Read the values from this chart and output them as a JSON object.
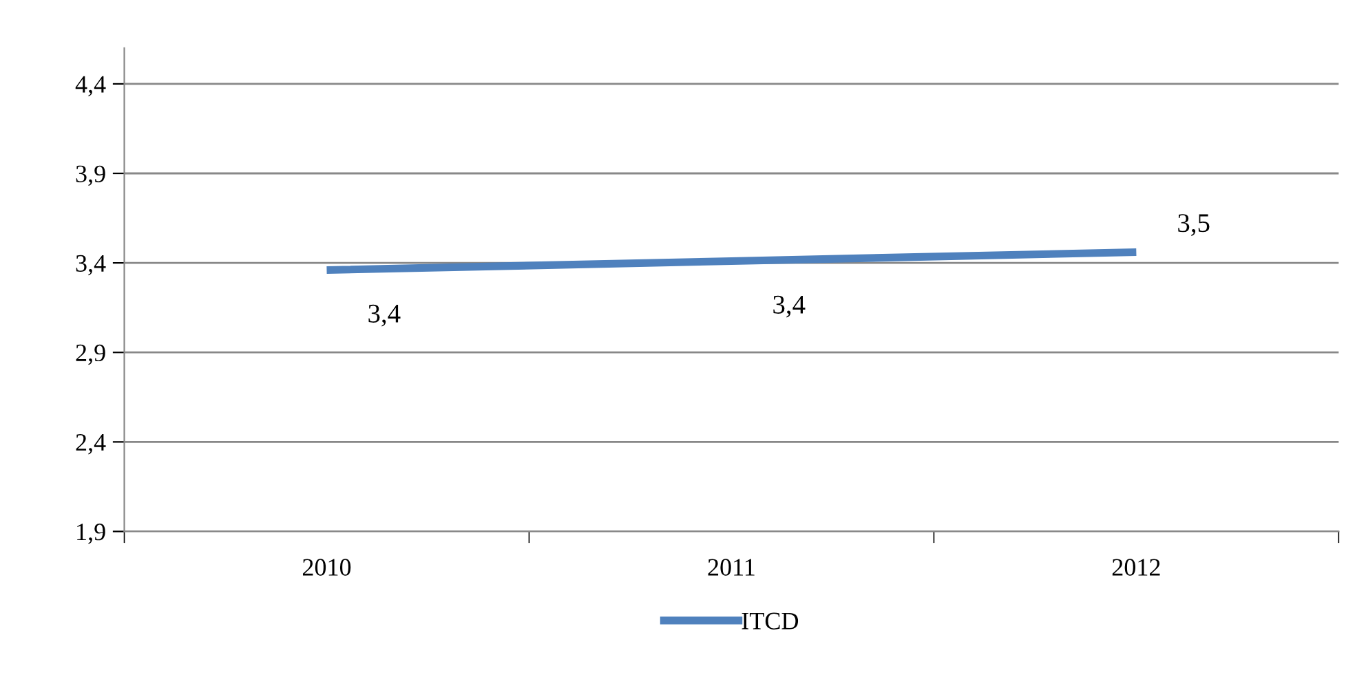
{
  "chart_data": {
    "type": "line",
    "categories": [
      "2010",
      "2011",
      "2012"
    ],
    "series": [
      {
        "name": "ITCD",
        "color": "#4f81bd",
        "values": [
          3.36,
          3.41,
          3.46
        ],
        "value_labels": [
          "3,4",
          "3,4",
          "3,5"
        ]
      }
    ],
    "ylim": [
      1.9,
      4.6
    ],
    "yticks": [
      {
        "value": 1.9,
        "label": "1,9"
      },
      {
        "value": 2.4,
        "label": "2,4"
      },
      {
        "value": 2.9,
        "label": "2,9"
      },
      {
        "value": 3.4,
        "label": "3,4"
      },
      {
        "value": 3.9,
        "label": "3,9"
      },
      {
        "value": 4.4,
        "label": "4,4"
      }
    ],
    "grid": "y",
    "legend": "bottom",
    "marker": "none",
    "line_style": "solid"
  }
}
